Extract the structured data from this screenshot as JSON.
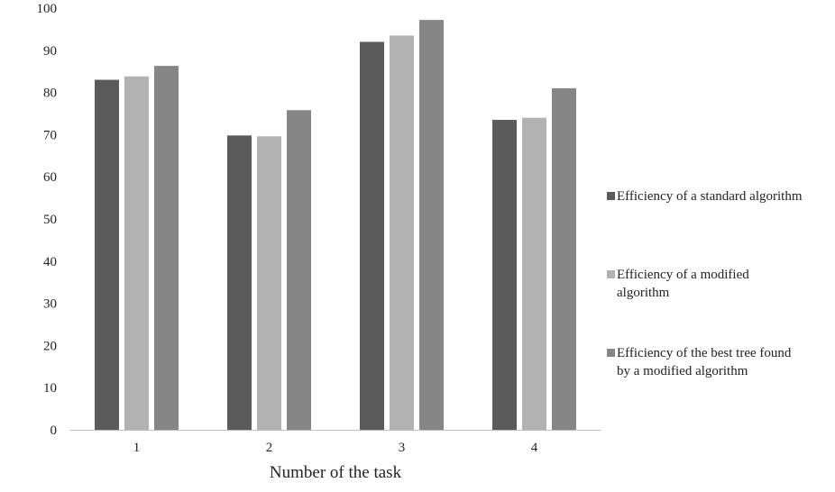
{
  "chart_data": {
    "type": "bar",
    "categories": [
      "1",
      "2",
      "3",
      "4"
    ],
    "series": [
      {
        "name": "Efficiency of a standard algorithm",
        "values": [
          83,
          69.8,
          92,
          73.5
        ],
        "color": "#5b5b5b"
      },
      {
        "name": "Efficiency of a modified algorithm",
        "values": [
          83.8,
          69.6,
          93.5,
          74
        ],
        "color": "#b2b2b2"
      },
      {
        "name": "Efficiency of the best tree found by a modified algorithm",
        "values": [
          86.3,
          75.8,
          97.2,
          81
        ],
        "color": "#868686"
      }
    ],
    "xlabel": "Number of the task",
    "ylabel": "",
    "ylim": [
      0,
      100
    ],
    "yticks": [
      0,
      10,
      20,
      30,
      40,
      50,
      60,
      70,
      80,
      90,
      100
    ],
    "grid": false,
    "legend": "right",
    "legend_lines": [
      [
        "Efficiency of a standard algorithm"
      ],
      [
        "Efficiency of a modified",
        "algorithm"
      ],
      [
        "Efficiency of the best tree found",
        "by a modified algorithm"
      ]
    ]
  }
}
